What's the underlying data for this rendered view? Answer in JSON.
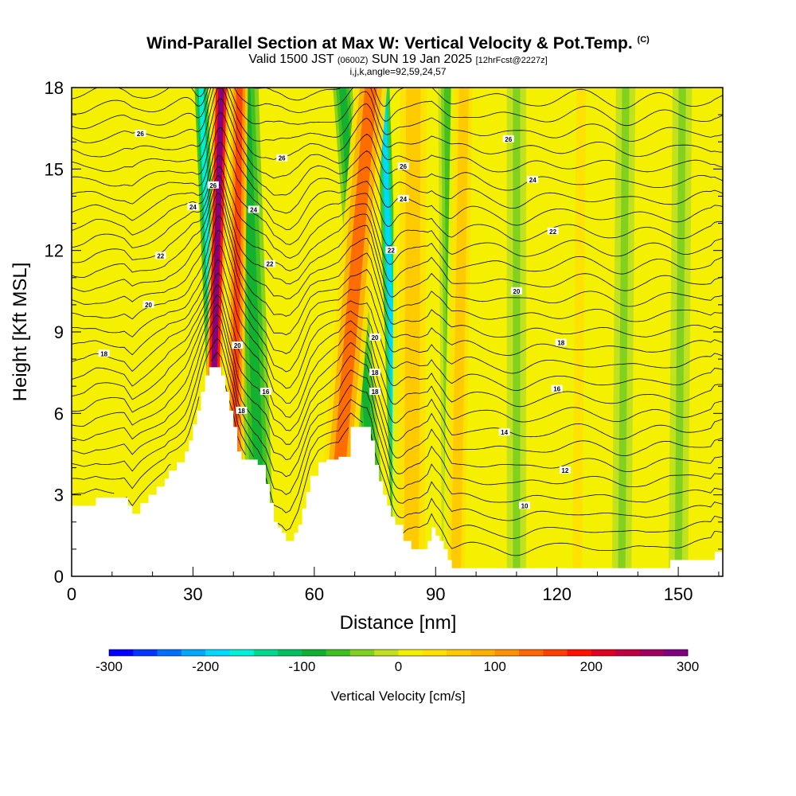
{
  "title": {
    "main": "Wind-Parallel Section at Max W: Vertical Velocity & Pot.Temp.",
    "copyright": "(C)",
    "valid_prefix": "Valid 1500 JST",
    "valid_utc": "(0600Z)",
    "valid_date": "SUN 19 Jan 2025",
    "forecast_info": "[12hrFcst@2227z]",
    "params": "i,j,k,angle=92,59,24,57"
  },
  "colors": {
    "background_fill": "#f4f000",
    "terrain": "#ffffff",
    "contour": "#000000",
    "palette": [
      "#0000ff",
      "#0036ff",
      "#0070ff",
      "#00a8ff",
      "#00d8ff",
      "#00f0d8",
      "#00d890",
      "#00c060",
      "#10b030",
      "#40c020",
      "#80d020",
      "#c0e020",
      "#f0f000",
      "#ffe000",
      "#ffc800",
      "#ffb000",
      "#ff9000",
      "#ff6800",
      "#ff4000",
      "#ff1000",
      "#e00020",
      "#c00040",
      "#a00060",
      "#800080",
      "#600090"
    ]
  },
  "chart_data": {
    "type": "heatmap",
    "subtype": "cross-section with contours",
    "xlabel": "Distance [nm]",
    "ylabel": "Height [Kft MSL]",
    "xlim": [
      0,
      161
    ],
    "ylim": [
      0,
      18
    ],
    "x_ticks": [
      0,
      30,
      60,
      90,
      120,
      150
    ],
    "y_ticks": [
      0,
      3,
      6,
      9,
      12,
      15,
      18
    ],
    "colorbar": {
      "title": "Vertical Velocity [cm/s]",
      "range": [
        -300,
        300
      ],
      "ticks": [
        -300,
        -200,
        -100,
        0,
        100,
        200,
        300
      ],
      "n_bins": 24
    },
    "terrain_profile": {
      "x": [
        0,
        3,
        6,
        10,
        13,
        14,
        15,
        17,
        19,
        21,
        23,
        24,
        26,
        28,
        29,
        30,
        31,
        32,
        33,
        34,
        36,
        37,
        38,
        39,
        40,
        41,
        42,
        44,
        46,
        48,
        49,
        50,
        51,
        52,
        53,
        54,
        55,
        56,
        57,
        58,
        59,
        61,
        63,
        66,
        69,
        71,
        73,
        74,
        75,
        76,
        77,
        78,
        79,
        80,
        82,
        84,
        86,
        88,
        89,
        90,
        91,
        92,
        93,
        94,
        95,
        96,
        97,
        98,
        100,
        104,
        110,
        116,
        120,
        126,
        130,
        136,
        142,
        148,
        152,
        156,
        158,
        159,
        160,
        161
      ],
      "height": [
        2.6,
        2.6,
        2.9,
        2.9,
        2.9,
        2.6,
        2.3,
        2.7,
        3.0,
        3.3,
        3.6,
        3.9,
        4.2,
        4.6,
        5.0,
        5.6,
        6.1,
        6.8,
        7.4,
        7.7,
        7.7,
        7.4,
        6.8,
        6.1,
        5.5,
        4.6,
        4.3,
        4.3,
        4.1,
        3.4,
        2.7,
        2.0,
        1.8,
        1.6,
        1.3,
        1.3,
        1.6,
        1.9,
        2.5,
        3.1,
        3.7,
        4.2,
        4.3,
        4.4,
        5.5,
        5.5,
        5.5,
        5.0,
        4.1,
        3.5,
        3.0,
        2.6,
        2.2,
        1.9,
        1.3,
        1.0,
        1.0,
        1.3,
        1.8,
        1.5,
        1.3,
        1.0,
        0.6,
        0.3,
        0.3,
        0.3,
        0.3,
        0.3,
        0.3,
        0.3,
        0.3,
        0.3,
        0.3,
        0.3,
        0.3,
        0.3,
        0.3,
        0.6,
        0.6,
        0.6,
        0.6,
        0.9,
        0.9,
        0.9
      ]
    },
    "updraft_bands": [
      {
        "x_base": 34.0,
        "x_top": 37.0,
        "half_width": 1.2,
        "w": 280
      },
      {
        "x_base": 40.0,
        "x_top": 41.5,
        "half_width": 1.3,
        "w": 150
      },
      {
        "x_base": 64.0,
        "x_top": 74.0,
        "half_width": 2.5,
        "w": 130
      },
      {
        "x_base": 84.0,
        "x_top": 84.5,
        "half_width": 3.0,
        "w": 55
      },
      {
        "x_base": 95.0,
        "x_top": 97.0,
        "half_width": 2.0,
        "w": 50
      },
      {
        "x_base": 125.0,
        "x_top": 126.0,
        "half_width": 2.0,
        "w": 30
      }
    ],
    "downdraft_bands": [
      {
        "x_base": 37.0,
        "x_top": 32.0,
        "half_width": 1.0,
        "w": -170
      },
      {
        "x_base": 47.0,
        "x_top": 43.0,
        "half_width": 2.0,
        "w": -95
      },
      {
        "x_base": 76.0,
        "x_top": 67.0,
        "half_width": 1.5,
        "w": -90
      },
      {
        "x_base": 81.0,
        "x_top": 77.0,
        "half_width": 1.0,
        "w": -190
      },
      {
        "x_base": 94.0,
        "x_top": 93.0,
        "half_width": 1.5,
        "w": -55
      },
      {
        "x_base": 110.0,
        "x_top": 110.0,
        "half_width": 1.5,
        "w": -35
      },
      {
        "x_base": 136.0,
        "x_top": 137.0,
        "half_width": 1.5,
        "w": -30
      },
      {
        "x_base": 150.0,
        "x_top": 151.0,
        "half_width": 1.5,
        "w": -30
      }
    ],
    "pot_temp_contours": {
      "label_values": [
        10,
        12,
        14,
        16,
        18,
        20,
        22,
        24,
        26
      ],
      "labels": [
        {
          "text": "26",
          "x": 17.0,
          "y": 16.3
        },
        {
          "text": "26",
          "x": 52.0,
          "y": 15.4
        },
        {
          "text": "26",
          "x": 35.0,
          "y": 14.4
        },
        {
          "text": "26",
          "x": 108.0,
          "y": 16.1
        },
        {
          "text": "26",
          "x": 82.0,
          "y": 15.1
        },
        {
          "text": "24",
          "x": 30.0,
          "y": 13.6
        },
        {
          "text": "24",
          "x": 45.0,
          "y": 13.5
        },
        {
          "text": "24",
          "x": 82.0,
          "y": 13.9
        },
        {
          "text": "24",
          "x": 114.0,
          "y": 14.6
        },
        {
          "text": "22",
          "x": 22.0,
          "y": 11.8
        },
        {
          "text": "22",
          "x": 49.0,
          "y": 11.5
        },
        {
          "text": "22",
          "x": 79.0,
          "y": 12.0
        },
        {
          "text": "22",
          "x": 119.0,
          "y": 12.7
        },
        {
          "text": "20",
          "x": 19.0,
          "y": 10.0
        },
        {
          "text": "20",
          "x": 41.0,
          "y": 8.5
        },
        {
          "text": "20",
          "x": 75.0,
          "y": 8.8
        },
        {
          "text": "20",
          "x": 110.0,
          "y": 10.5
        },
        {
          "text": "18",
          "x": 8.0,
          "y": 8.2
        },
        {
          "text": "18",
          "x": 42.0,
          "y": 6.1
        },
        {
          "text": "18",
          "x": 75.0,
          "y": 7.5
        },
        {
          "text": "18",
          "x": 75.0,
          "y": 6.8
        },
        {
          "text": "18",
          "x": 121.0,
          "y": 8.6
        },
        {
          "text": "16",
          "x": 48.0,
          "y": 6.8
        },
        {
          "text": "16",
          "x": 120.0,
          "y": 6.9
        },
        {
          "text": "14",
          "x": 107.0,
          "y": 5.3
        },
        {
          "text": "12",
          "x": 122.0,
          "y": 3.9
        },
        {
          "text": "10",
          "x": 112.0,
          "y": 2.6
        }
      ]
    }
  }
}
